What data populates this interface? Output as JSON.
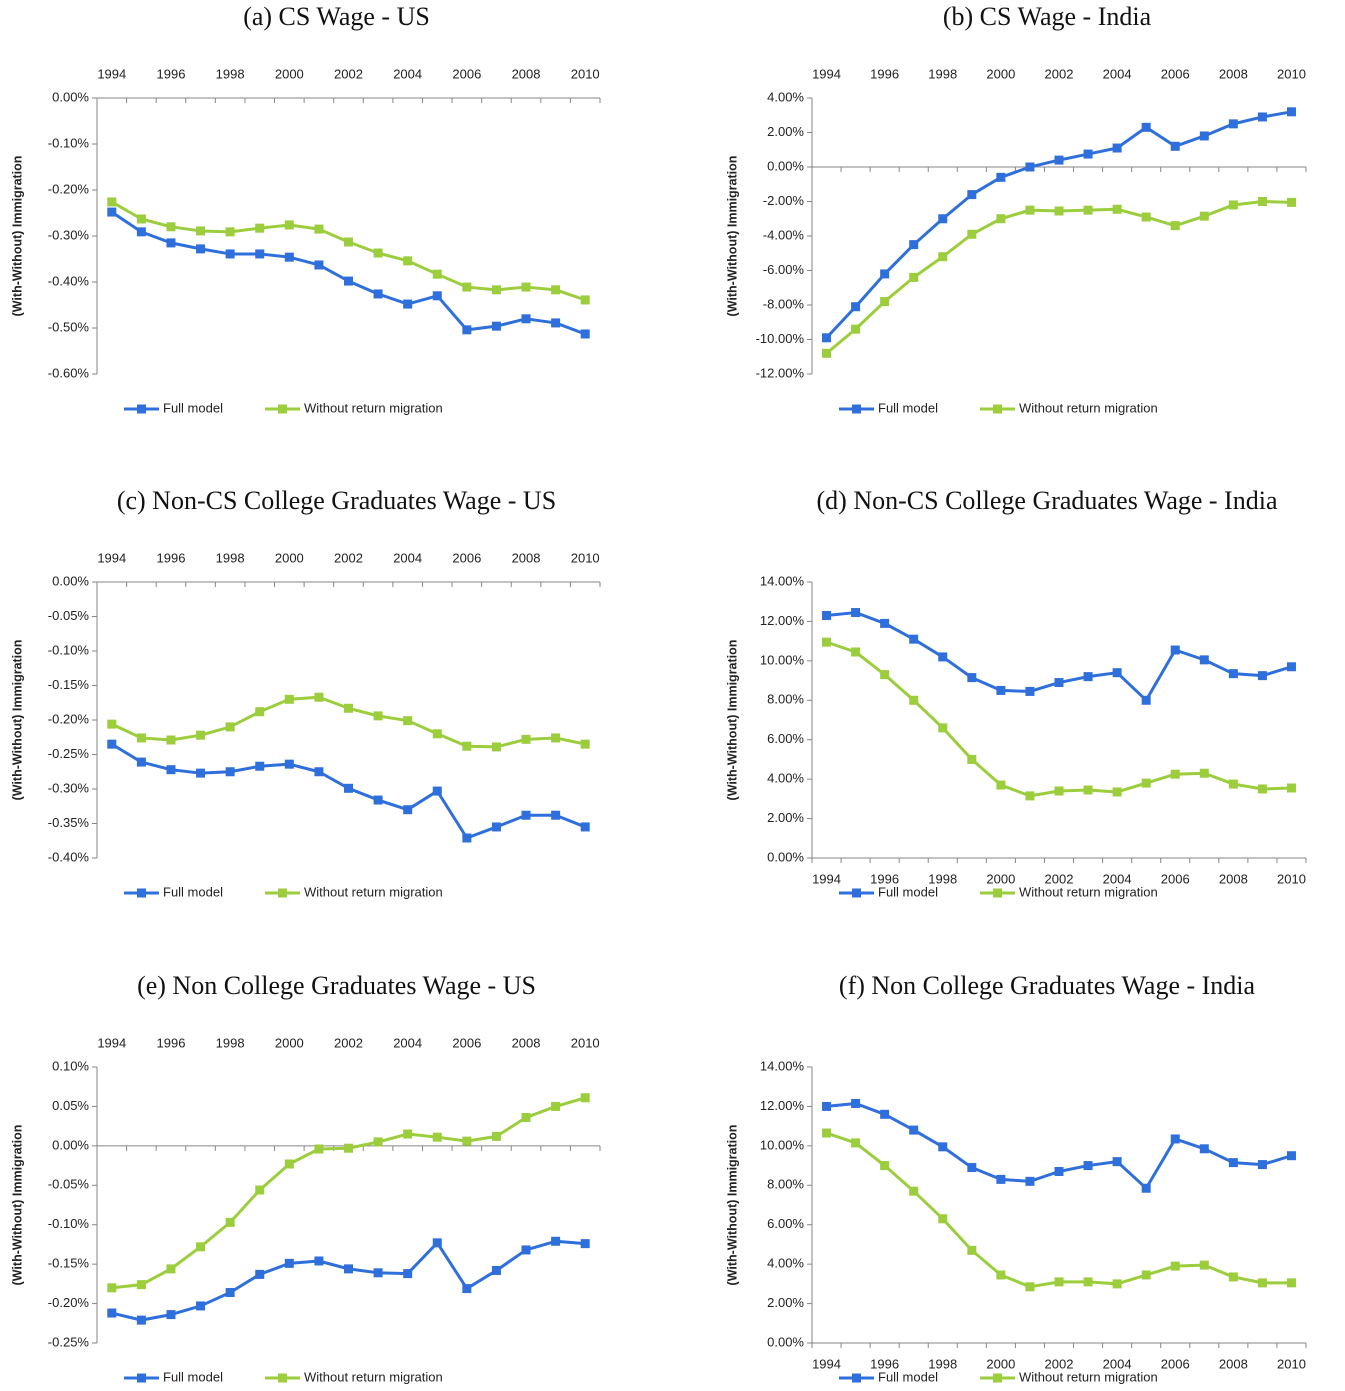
{
  "chart_data": [
    {
      "type": "line",
      "title": "(a) CS Wage - US",
      "y_label": "(With-Without) Immigration",
      "categories": [
        "1994",
        null,
        "1996",
        null,
        "1998",
        null,
        "2000",
        null,
        "2002",
        null,
        "2004",
        null,
        "2006",
        null,
        "2008",
        null,
        "2010"
      ],
      "xlabel_position": "top",
      "legend": "bottom",
      "ylim": [
        -0.6,
        0
      ],
      "yticks": [
        {
          "value": 0,
          "label": "0.00%"
        },
        {
          "value": -0.1,
          "label": "-0.10%"
        },
        {
          "value": -0.2,
          "label": "-0.20%"
        },
        {
          "value": -0.3,
          "label": "-0.30%"
        },
        {
          "value": -0.4,
          "label": "-0.40%"
        },
        {
          "value": -0.5,
          "label": "-0.50%"
        },
        {
          "value": -0.6,
          "label": "-0.60%"
        }
      ],
      "series": [
        {
          "name": "Full model",
          "color": "#2f6fdc",
          "values": [
            -0.248,
            -0.291,
            -0.315,
            -0.328,
            -0.339,
            -0.339,
            -0.346,
            -0.363,
            -0.398,
            -0.426,
            -0.448,
            -0.43,
            -0.504,
            -0.496,
            -0.48,
            -0.489,
            -0.513
          ]
        },
        {
          "name": "Without return migration",
          "color": "#9bcd3c",
          "values": [
            -0.226,
            -0.263,
            -0.28,
            -0.289,
            -0.291,
            -0.283,
            -0.276,
            -0.285,
            -0.313,
            -0.337,
            -0.354,
            -0.383,
            -0.411,
            -0.417,
            -0.411,
            -0.417,
            -0.439
          ]
        }
      ]
    },
    {
      "type": "line",
      "title": "(b) CS Wage - India",
      "y_label": "(With-Without) Immigration",
      "categories": [
        "1994",
        null,
        "1996",
        null,
        "1998",
        null,
        "2000",
        null,
        "2002",
        null,
        "2004",
        null,
        "2006",
        null,
        "2008",
        null,
        "2010"
      ],
      "xlabel_position": "top",
      "legend": "bottom",
      "ylim": [
        -12,
        4
      ],
      "yticks": [
        {
          "value": 4,
          "label": "4.00%"
        },
        {
          "value": 2,
          "label": "2.00%"
        },
        {
          "value": 0,
          "label": "0.00%"
        },
        {
          "value": -2,
          "label": "-2.00%"
        },
        {
          "value": -4,
          "label": "-4.00%"
        },
        {
          "value": -6,
          "label": "-6.00%"
        },
        {
          "value": -8,
          "label": "-8.00%"
        },
        {
          "value": -10,
          "label": "-10.00%"
        },
        {
          "value": -12,
          "label": "-12.00%"
        }
      ],
      "series": [
        {
          "name": "Full model",
          "color": "#2f6fdc",
          "values": [
            -9.9,
            -8.1,
            -6.2,
            -4.5,
            -3.0,
            -1.6,
            -0.6,
            0,
            0.4,
            0.75,
            1.1,
            2.3,
            1.2,
            1.8,
            2.5,
            2.9,
            3.2
          ]
        },
        {
          "name": "Without return migration",
          "color": "#9bcd3c",
          "values": [
            -10.8,
            -9.4,
            -7.8,
            -6.4,
            -5.2,
            -3.9,
            -3.0,
            -2.5,
            -2.55,
            -2.5,
            -2.45,
            -2.9,
            -3.4,
            -2.85,
            -2.2,
            -2.0,
            -2.05
          ]
        }
      ]
    },
    {
      "type": "line",
      "title": "(c) Non-CS College Graduates Wage - US",
      "y_label": "(With-Without) Immigration",
      "categories": [
        "1994",
        null,
        "1996",
        null,
        "1998",
        null,
        "2000",
        null,
        "2002",
        null,
        "2004",
        null,
        "2006",
        null,
        "2008",
        null,
        "2010"
      ],
      "xlabel_position": "top",
      "legend": "bottom",
      "ylim": [
        -0.4,
        0
      ],
      "yticks": [
        {
          "value": 0,
          "label": "0.00%"
        },
        {
          "value": -0.05,
          "label": "-0.05%"
        },
        {
          "value": -0.1,
          "label": "-0.10%"
        },
        {
          "value": -0.15,
          "label": "-0.15%"
        },
        {
          "value": -0.2,
          "label": "-0.20%"
        },
        {
          "value": -0.25,
          "label": "-0.25%"
        },
        {
          "value": -0.3,
          "label": "-0.30%"
        },
        {
          "value": -0.35,
          "label": "-0.35%"
        },
        {
          "value": -0.4,
          "label": "-0.40%"
        }
      ],
      "series": [
        {
          "name": "Full model",
          "color": "#2f6fdc",
          "values": [
            -0.235,
            -0.261,
            -0.272,
            -0.277,
            -0.275,
            -0.267,
            -0.264,
            -0.275,
            -0.299,
            -0.316,
            -0.33,
            -0.303,
            -0.371,
            -0.355,
            -0.338,
            -0.338,
            -0.355
          ]
        },
        {
          "name": "Without return migration",
          "color": "#9bcd3c",
          "values": [
            -0.206,
            -0.226,
            -0.229,
            -0.222,
            -0.21,
            -0.188,
            -0.17,
            -0.167,
            -0.183,
            -0.194,
            -0.201,
            -0.22,
            -0.238,
            -0.239,
            -0.228,
            -0.226,
            -0.235
          ]
        }
      ]
    },
    {
      "type": "line",
      "title": "(d) Non-CS College Graduates Wage - India",
      "y_label": "(With-Without) Immigration",
      "categories": [
        "1994",
        null,
        "1996",
        null,
        "1998",
        null,
        "2000",
        null,
        "2002",
        null,
        "2004",
        null,
        "2006",
        null,
        "2008",
        null,
        "2010"
      ],
      "xlabel_position": "bottom",
      "legend": "bottom",
      "ylim": [
        0,
        14
      ],
      "yticks": [
        {
          "value": 14,
          "label": "14.00%"
        },
        {
          "value": 12,
          "label": "12.00%"
        },
        {
          "value": 10,
          "label": "10.00%"
        },
        {
          "value": 8,
          "label": "8.00%"
        },
        {
          "value": 6,
          "label": "6.00%"
        },
        {
          "value": 4,
          "label": "4.00%"
        },
        {
          "value": 2,
          "label": "2.00%"
        },
        {
          "value": 0,
          "label": "0.00%"
        }
      ],
      "series": [
        {
          "name": "Full model",
          "color": "#2f6fdc",
          "values": [
            12.3,
            12.45,
            11.9,
            11.1,
            10.2,
            9.15,
            8.5,
            8.45,
            8.9,
            9.2,
            9.4,
            8.0,
            10.55,
            10.05,
            9.35,
            9.25,
            9.7
          ]
        },
        {
          "name": "Without return migration",
          "color": "#9bcd3c",
          "values": [
            10.95,
            10.45,
            9.3,
            8.0,
            6.6,
            5.0,
            3.7,
            3.15,
            3.4,
            3.45,
            3.35,
            3.8,
            4.25,
            4.3,
            3.75,
            3.5,
            3.55
          ]
        }
      ]
    },
    {
      "type": "line",
      "title": "(e) Non College Graduates Wage - US",
      "y_label": "(With-Without) Immigration",
      "categories": [
        "1994",
        null,
        "1996",
        null,
        "1998",
        null,
        "2000",
        null,
        "2002",
        null,
        "2004",
        null,
        "2006",
        null,
        "2008",
        null,
        "2010"
      ],
      "xlabel_position": "top",
      "legend": "bottom",
      "ylim": [
        -0.25,
        0.1
      ],
      "yticks": [
        {
          "value": 0.1,
          "label": "0.10%"
        },
        {
          "value": 0.05,
          "label": "0.05%"
        },
        {
          "value": 0,
          "label": "0.00%"
        },
        {
          "value": -0.05,
          "label": "-0.05%"
        },
        {
          "value": -0.1,
          "label": "-0.10%"
        },
        {
          "value": -0.15,
          "label": "-0.15%"
        },
        {
          "value": -0.2,
          "label": "-0.20%"
        },
        {
          "value": -0.25,
          "label": "-0.25%"
        }
      ],
      "series": [
        {
          "name": "Full model",
          "color": "#2f6fdc",
          "values": [
            -0.212,
            -0.221,
            -0.214,
            -0.203,
            -0.186,
            -0.163,
            -0.149,
            -0.146,
            -0.156,
            -0.161,
            -0.162,
            -0.123,
            -0.181,
            -0.158,
            -0.132,
            -0.121,
            -0.124
          ]
        },
        {
          "name": "Without return migration",
          "color": "#9bcd3c",
          "values": [
            -0.18,
            -0.176,
            -0.156,
            -0.128,
            -0.097,
            -0.056,
            -0.023,
            -0.004,
            -0.003,
            0.005,
            0.015,
            0.011,
            0.006,
            0.012,
            0.036,
            0.05,
            0.061
          ]
        }
      ]
    },
    {
      "type": "line",
      "title": "(f) Non College Graduates Wage - India",
      "y_label": "(With-Without) Immigration",
      "categories": [
        "1994",
        null,
        "1996",
        null,
        "1998",
        null,
        "2000",
        null,
        "2002",
        null,
        "2004",
        null,
        "2006",
        null,
        "2008",
        null,
        "2010"
      ],
      "xlabel_position": "bottom",
      "legend": "bottom",
      "ylim": [
        0,
        14
      ],
      "yticks": [
        {
          "value": 14,
          "label": "14.00%"
        },
        {
          "value": 12,
          "label": "12.00%"
        },
        {
          "value": 10,
          "label": "10.00%"
        },
        {
          "value": 8,
          "label": "8.00%"
        },
        {
          "value": 6,
          "label": "6.00%"
        },
        {
          "value": 4,
          "label": "4.00%"
        },
        {
          "value": 2,
          "label": "2.00%"
        },
        {
          "value": 0,
          "label": "0.00%"
        }
      ],
      "series": [
        {
          "name": "Full model",
          "color": "#2f6fdc",
          "values": [
            12.0,
            12.15,
            11.6,
            10.8,
            9.95,
            8.9,
            8.3,
            8.2,
            8.7,
            9.0,
            9.2,
            7.85,
            10.35,
            9.85,
            9.15,
            9.05,
            9.5
          ]
        },
        {
          "name": "Without return migration",
          "color": "#9bcd3c",
          "values": [
            10.65,
            10.15,
            9.0,
            7.7,
            6.3,
            4.7,
            3.45,
            2.85,
            3.1,
            3.1,
            3.0,
            3.45,
            3.9,
            3.95,
            3.35,
            3.05,
            3.05
          ]
        }
      ]
    }
  ]
}
